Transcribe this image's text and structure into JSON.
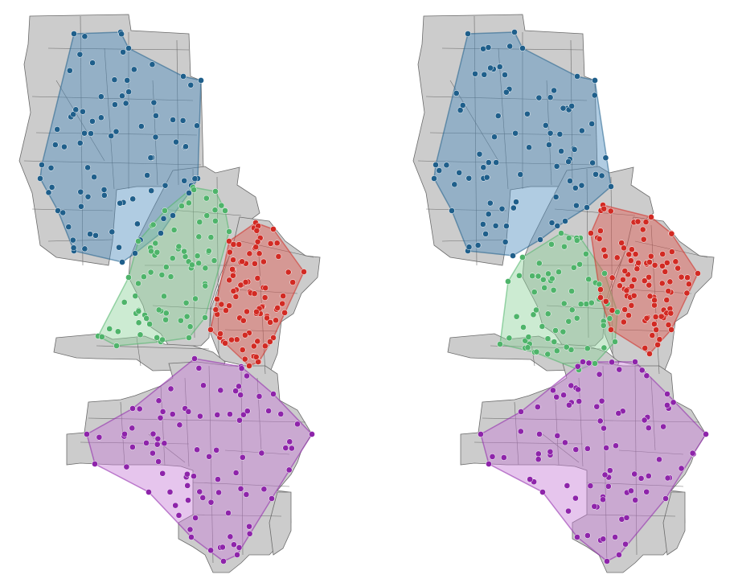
{
  "figure": {
    "panels": [
      {
        "id": "left",
        "clusters": [
          {
            "color": "#1f5f8b",
            "hull_fill": "#4f8fbf",
            "count": 88
          },
          {
            "color": "#4eb46a",
            "hull_fill": "#8fd39b",
            "count": 78
          },
          {
            "color": "#d22a23",
            "hull_fill": "#e0584f",
            "count": 92
          },
          {
            "color": "#8e24aa",
            "hull_fill": "#c77ed6",
            "count": 90
          }
        ]
      },
      {
        "id": "right",
        "clusters": [
          {
            "color": "#1f5f8b",
            "hull_fill": "#4f8fbf",
            "count": 88
          },
          {
            "color": "#4eb46a",
            "hull_fill": "#8fd39b",
            "count": 70
          },
          {
            "color": "#d22a23",
            "hull_fill": "#e0584f",
            "count": 100
          },
          {
            "color": "#8e24aa",
            "hull_fill": "#c77ed6",
            "count": 90
          }
        ]
      }
    ]
  }
}
